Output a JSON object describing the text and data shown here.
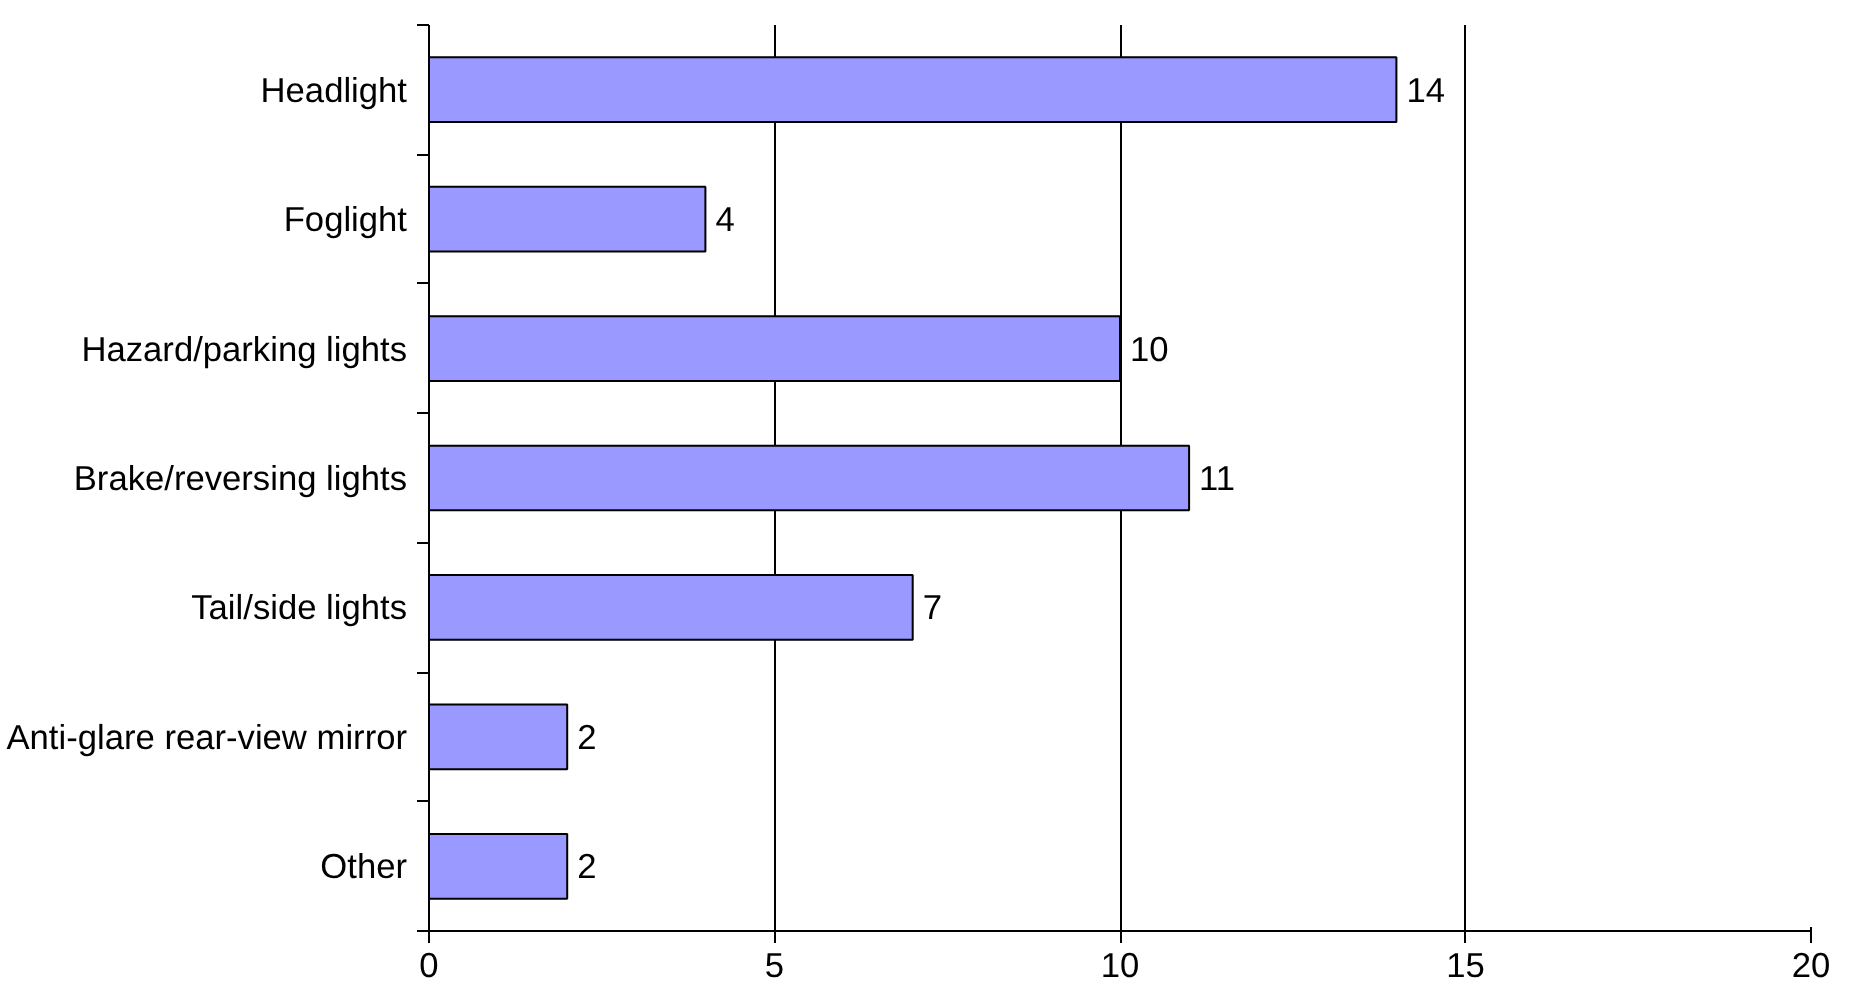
{
  "chart_data": {
    "type": "bar",
    "orientation": "horizontal",
    "categories": [
      "Headlight",
      "Foglight",
      "Hazard/parking lights",
      "Brake/reversing lights",
      "Tail/side lights",
      "Anti-glare rear-view mirror",
      "Other"
    ],
    "values": [
      14,
      4,
      10,
      11,
      7,
      2,
      2
    ],
    "color": "#9999ff",
    "xlim": [
      0,
      20
    ],
    "xticks": [
      0,
      5,
      10,
      15,
      20
    ],
    "grid": "x",
    "data_labels": true
  }
}
